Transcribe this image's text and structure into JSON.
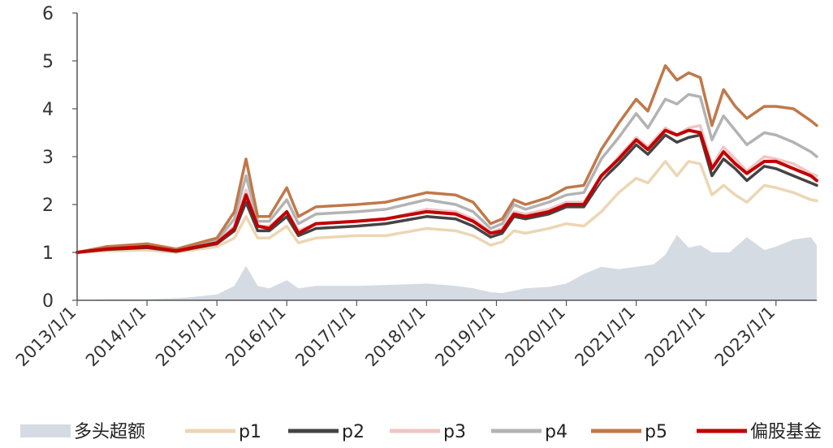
{
  "chart_data": {
    "type": "line",
    "title": "",
    "xlabel": "",
    "ylabel": "",
    "ylim": [
      0,
      6
    ],
    "yticks": [
      "0",
      "1",
      "2",
      "3",
      "4",
      "5",
      "6"
    ],
    "xlim": [
      "2013-01-01",
      "2023-08-01"
    ],
    "xticks": [
      "2013/1/1",
      "2014/1/1",
      "2015/1/1",
      "2016/1/1",
      "2017/1/1",
      "2018/1/1",
      "2019/1/1",
      "2020/1/1",
      "2021/1/1",
      "2022/1/1",
      "2023/1/1"
    ],
    "grid": false,
    "legend_position": "bottom",
    "area_series": {
      "name": "多头超额",
      "color": "#d5dbe3",
      "x": [
        "2013-01",
        "2013-07",
        "2014-01",
        "2014-07",
        "2015-01",
        "2015-04",
        "2015-06",
        "2015-08",
        "2015-10",
        "2016-01",
        "2016-03",
        "2016-06",
        "2017-01",
        "2017-06",
        "2018-01",
        "2018-06",
        "2018-09",
        "2018-12",
        "2019-02",
        "2019-06",
        "2019-10",
        "2020-01",
        "2020-04",
        "2020-07",
        "2020-10",
        "2021-01",
        "2021-04",
        "2021-06",
        "2021-08",
        "2021-10",
        "2021-12",
        "2022-02",
        "2022-05",
        "2022-08",
        "2022-11",
        "2023-01",
        "2023-04",
        "2023-07",
        "2023-08"
      ],
      "values": [
        0.0,
        0.02,
        0.02,
        0.05,
        0.12,
        0.3,
        0.72,
        0.3,
        0.25,
        0.42,
        0.25,
        0.3,
        0.3,
        0.32,
        0.35,
        0.3,
        0.25,
        0.17,
        0.15,
        0.25,
        0.28,
        0.35,
        0.55,
        0.7,
        0.65,
        0.7,
        0.75,
        0.95,
        1.37,
        1.1,
        1.15,
        1.0,
        1.0,
        1.32,
        1.05,
        1.12,
        1.27,
        1.32,
        1.15
      ]
    },
    "series": [
      {
        "name": "p1",
        "color": "#ecd6b4",
        "x": [
          "2013-01",
          "2013-06",
          "2014-01",
          "2014-06",
          "2015-01",
          "2015-04",
          "2015-06",
          "2015-08",
          "2015-10",
          "2016-01",
          "2016-03",
          "2016-06",
          "2017-01",
          "2017-06",
          "2018-01",
          "2018-06",
          "2018-09",
          "2018-12",
          "2019-02",
          "2019-04",
          "2019-06",
          "2019-10",
          "2020-01",
          "2020-04",
          "2020-07",
          "2020-10",
          "2021-01",
          "2021-03",
          "2021-06",
          "2021-08",
          "2021-10",
          "2021-12",
          "2022-02",
          "2022-04",
          "2022-06",
          "2022-08",
          "2022-11",
          "2023-01",
          "2023-04",
          "2023-07",
          "2023-08"
        ],
        "values": [
          1.0,
          1.03,
          1.05,
          1.0,
          1.12,
          1.3,
          1.75,
          1.3,
          1.3,
          1.55,
          1.2,
          1.3,
          1.35,
          1.35,
          1.5,
          1.45,
          1.35,
          1.15,
          1.22,
          1.45,
          1.4,
          1.5,
          1.6,
          1.55,
          1.85,
          2.25,
          2.55,
          2.45,
          2.9,
          2.6,
          2.9,
          2.85,
          2.2,
          2.4,
          2.2,
          2.05,
          2.4,
          2.35,
          2.25,
          2.1,
          2.08
        ]
      },
      {
        "name": "p2",
        "color": "#444444",
        "x": [
          "2013-01",
          "2013-06",
          "2014-01",
          "2014-06",
          "2015-01",
          "2015-04",
          "2015-06",
          "2015-08",
          "2015-10",
          "2016-01",
          "2016-03",
          "2016-06",
          "2017-01",
          "2017-06",
          "2018-01",
          "2018-06",
          "2018-09",
          "2018-12",
          "2019-02",
          "2019-04",
          "2019-06",
          "2019-10",
          "2020-01",
          "2020-04",
          "2020-07",
          "2020-10",
          "2021-01",
          "2021-03",
          "2021-06",
          "2021-08",
          "2021-10",
          "2021-12",
          "2022-02",
          "2022-04",
          "2022-06",
          "2022-08",
          "2022-11",
          "2023-01",
          "2023-04",
          "2023-07",
          "2023-08"
        ],
        "values": [
          1.0,
          1.06,
          1.1,
          1.02,
          1.18,
          1.45,
          2.05,
          1.45,
          1.45,
          1.75,
          1.35,
          1.5,
          1.55,
          1.6,
          1.75,
          1.7,
          1.55,
          1.32,
          1.4,
          1.75,
          1.7,
          1.8,
          1.95,
          1.95,
          2.5,
          2.85,
          3.25,
          3.05,
          3.45,
          3.3,
          3.4,
          3.45,
          2.6,
          2.95,
          2.75,
          2.5,
          2.8,
          2.75,
          2.6,
          2.45,
          2.4
        ]
      },
      {
        "name": "p3",
        "color": "#f2c4c6",
        "x": [
          "2013-01",
          "2013-06",
          "2014-01",
          "2014-06",
          "2015-01",
          "2015-04",
          "2015-06",
          "2015-08",
          "2015-10",
          "2016-01",
          "2016-03",
          "2016-06",
          "2017-01",
          "2017-06",
          "2018-01",
          "2018-06",
          "2018-09",
          "2018-12",
          "2019-02",
          "2019-04",
          "2019-06",
          "2019-10",
          "2020-01",
          "2020-04",
          "2020-07",
          "2020-10",
          "2021-01",
          "2021-03",
          "2021-06",
          "2021-08",
          "2021-10",
          "2021-12",
          "2022-02",
          "2022-04",
          "2022-06",
          "2022-08",
          "2022-11",
          "2023-01",
          "2023-04",
          "2023-07",
          "2023-08"
        ],
        "values": [
          1.0,
          1.08,
          1.12,
          1.04,
          1.22,
          1.55,
          2.3,
          1.55,
          1.55,
          1.85,
          1.45,
          1.6,
          1.65,
          1.7,
          1.9,
          1.85,
          1.7,
          1.42,
          1.5,
          1.85,
          1.8,
          1.9,
          2.05,
          2.05,
          2.55,
          3.0,
          3.4,
          3.2,
          3.6,
          3.45,
          3.6,
          3.65,
          2.8,
          3.2,
          2.95,
          2.7,
          3.0,
          2.95,
          2.85,
          2.65,
          2.6
        ]
      },
      {
        "name": "p4",
        "color": "#b3b3b3",
        "x": [
          "2013-01",
          "2013-06",
          "2014-01",
          "2014-06",
          "2015-01",
          "2015-04",
          "2015-06",
          "2015-08",
          "2015-10",
          "2016-01",
          "2016-03",
          "2016-06",
          "2017-01",
          "2017-06",
          "2018-01",
          "2018-06",
          "2018-09",
          "2018-12",
          "2019-02",
          "2019-04",
          "2019-06",
          "2019-10",
          "2020-01",
          "2020-04",
          "2020-07",
          "2020-10",
          "2021-01",
          "2021-03",
          "2021-06",
          "2021-08",
          "2021-10",
          "2021-12",
          "2022-02",
          "2022-04",
          "2022-06",
          "2022-08",
          "2022-11",
          "2023-01",
          "2023-04",
          "2023-07",
          "2023-08"
        ],
        "values": [
          1.0,
          1.1,
          1.15,
          1.05,
          1.25,
          1.7,
          2.6,
          1.65,
          1.65,
          2.1,
          1.6,
          1.8,
          1.85,
          1.9,
          2.1,
          2.0,
          1.85,
          1.5,
          1.6,
          2.0,
          1.9,
          2.05,
          2.2,
          2.25,
          2.95,
          3.4,
          3.9,
          3.6,
          4.2,
          4.1,
          4.3,
          4.25,
          3.35,
          3.85,
          3.55,
          3.25,
          3.5,
          3.45,
          3.3,
          3.1,
          3.0
        ]
      },
      {
        "name": "p5",
        "color": "#c0784a",
        "x": [
          "2013-01",
          "2013-06",
          "2014-01",
          "2014-06",
          "2015-01",
          "2015-04",
          "2015-06",
          "2015-08",
          "2015-10",
          "2016-01",
          "2016-03",
          "2016-06",
          "2017-01",
          "2017-06",
          "2018-01",
          "2018-06",
          "2018-09",
          "2018-12",
          "2019-02",
          "2019-04",
          "2019-06",
          "2019-10",
          "2020-01",
          "2020-04",
          "2020-07",
          "2020-10",
          "2021-01",
          "2021-03",
          "2021-06",
          "2021-08",
          "2021-10",
          "2021-12",
          "2022-02",
          "2022-04",
          "2022-06",
          "2022-08",
          "2022-11",
          "2023-01",
          "2023-04",
          "2023-07",
          "2023-08"
        ],
        "values": [
          1.0,
          1.12,
          1.18,
          1.07,
          1.3,
          1.85,
          2.95,
          1.75,
          1.75,
          2.35,
          1.75,
          1.95,
          2.0,
          2.05,
          2.25,
          2.2,
          2.05,
          1.6,
          1.7,
          2.1,
          2.0,
          2.15,
          2.35,
          2.4,
          3.15,
          3.7,
          4.2,
          3.95,
          4.9,
          4.6,
          4.75,
          4.65,
          3.65,
          4.4,
          4.05,
          3.8,
          4.05,
          4.05,
          4.0,
          3.75,
          3.65
        ]
      },
      {
        "name": "偏股基金",
        "color": "#c00000",
        "x": [
          "2013-01",
          "2013-06",
          "2014-01",
          "2014-06",
          "2015-01",
          "2015-04",
          "2015-06",
          "2015-08",
          "2015-10",
          "2016-01",
          "2016-03",
          "2016-06",
          "2017-01",
          "2017-06",
          "2018-01",
          "2018-06",
          "2018-09",
          "2018-12",
          "2019-02",
          "2019-04",
          "2019-06",
          "2019-10",
          "2020-01",
          "2020-04",
          "2020-07",
          "2020-10",
          "2021-01",
          "2021-03",
          "2021-06",
          "2021-08",
          "2021-10",
          "2021-12",
          "2022-02",
          "2022-04",
          "2022-06",
          "2022-08",
          "2022-11",
          "2023-01",
          "2023-04",
          "2023-07",
          "2023-08"
        ],
        "values": [
          1.0,
          1.07,
          1.12,
          1.03,
          1.2,
          1.5,
          2.2,
          1.55,
          1.5,
          1.85,
          1.4,
          1.6,
          1.65,
          1.7,
          1.85,
          1.8,
          1.65,
          1.4,
          1.45,
          1.8,
          1.75,
          1.85,
          2.0,
          2.0,
          2.6,
          2.95,
          3.35,
          3.15,
          3.55,
          3.45,
          3.55,
          3.5,
          2.75,
          3.1,
          2.85,
          2.65,
          2.9,
          2.9,
          2.75,
          2.6,
          2.5
        ]
      }
    ]
  }
}
